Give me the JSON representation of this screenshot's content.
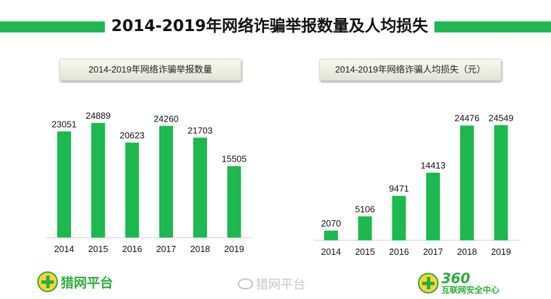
{
  "title": "2014-2019年网络诈骗举报数量及人均损失",
  "colors": {
    "accent": "#1db84f",
    "bar": "#1db84f"
  },
  "chart_data": [
    {
      "type": "bar",
      "title": "2014-2019年网络诈骗举报数量",
      "categories": [
        "2014",
        "2015",
        "2016",
        "2017",
        "2018",
        "2019"
      ],
      "values": [
        23051,
        24889,
        20623,
        24260,
        21703,
        15505
      ],
      "ylim": [
        0,
        27000
      ],
      "grid": false,
      "legend": "none"
    },
    {
      "type": "bar",
      "title": "2014-2019年网络诈骗人均损失（元）",
      "categories": [
        "2014",
        "2015",
        "2016",
        "2017",
        "2018",
        "2019"
      ],
      "values": [
        2070,
        5106,
        9471,
        14413,
        24476,
        24549
      ],
      "ylim": [
        0,
        26500
      ],
      "grid": false,
      "legend": "none"
    }
  ],
  "logos": {
    "left_text": "猎网平台",
    "right_big": "360",
    "right_small": "互联网安全中心"
  },
  "watermark": "猎网平台"
}
